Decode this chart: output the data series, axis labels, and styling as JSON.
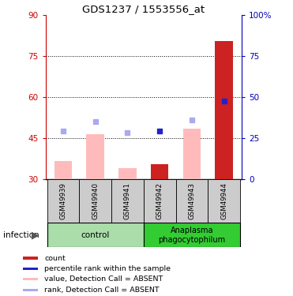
{
  "title": "GDS1237 / 1553556_at",
  "samples": [
    "GSM49939",
    "GSM49940",
    "GSM49941",
    "GSM49942",
    "GSM49943",
    "GSM49944"
  ],
  "bar_bottom": 30,
  "value_bars": [
    36.5,
    46.5,
    34.0,
    35.5,
    48.5,
    80.5
  ],
  "value_bar_colors": [
    "#ffbbbb",
    "#ffbbbb",
    "#ffbbbb",
    "#cc2222",
    "#ffbbbb",
    "#cc2222"
  ],
  "rank_dots_y": [
    47.5,
    51.0,
    47.0,
    47.5,
    51.5,
    58.5
  ],
  "rank_dot_colors": [
    "#aaaaee",
    "#aaaaee",
    "#aaaaee",
    "#2222cc",
    "#aaaaee",
    "#2222cc"
  ],
  "left_ylim": [
    30,
    90
  ],
  "left_yticks": [
    30,
    45,
    60,
    75,
    90
  ],
  "right_ylim": [
    0,
    100
  ],
  "right_yticks": [
    0,
    25,
    50,
    75,
    100
  ],
  "right_yticklabels": [
    "0",
    "25",
    "50",
    "75",
    "100%"
  ],
  "left_axis_color": "#cc0000",
  "right_axis_color": "#0000bb",
  "hlines": [
    45,
    60,
    75
  ],
  "legend_items": [
    {
      "label": "count",
      "color": "#cc2222"
    },
    {
      "label": "percentile rank within the sample",
      "color": "#2222cc"
    },
    {
      "label": "value, Detection Call = ABSENT",
      "color": "#ffbbbb"
    },
    {
      "label": "rank, Detection Call = ABSENT",
      "color": "#aaaaee"
    }
  ],
  "ctrl_color": "#aaddaa",
  "ana_color": "#33cc33",
  "sample_box_color": "#cccccc",
  "fig_bg": "#ffffff"
}
